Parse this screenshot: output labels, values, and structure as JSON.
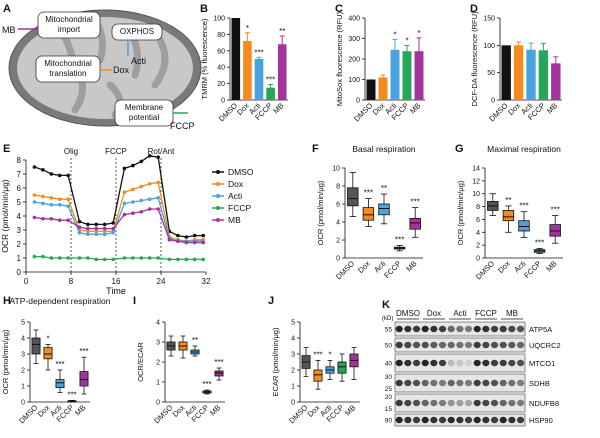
{
  "colors": {
    "dmso": "#111111",
    "dox": "#f58a1f",
    "acti": "#4aa3df",
    "fccp": "#26a65b",
    "mb": "#a3359a",
    "dmso_box": "#555555",
    "mito": "#c8c8c8",
    "mito_inner": "#9e9e9e"
  },
  "panelA": {
    "letter": "A",
    "labels": {
      "mb": "MB",
      "import": "Mitochondrial\nimport",
      "oxphos": "OXPHOS",
      "acti": "Acti",
      "translation": "Mitochondrial\ntranslation",
      "dox": "Dox",
      "membrane": "Membrane\npotential",
      "fccp": "FCCP"
    }
  },
  "panels": [
    {
      "key": "B",
      "letter": "B",
      "ylabel": "TMRM (% fluorescence)",
      "yticks": [
        0,
        20,
        40,
        60,
        80,
        100
      ],
      "ymax": 100,
      "categories": [
        "DMSO",
        "Dox",
        "Acti",
        "FCCP",
        "MB"
      ],
      "values": [
        100,
        72,
        50,
        15,
        68
      ],
      "errors": [
        0,
        10,
        2,
        4,
        10
      ],
      "stars": [
        "",
        "*",
        "***",
        "***",
        "**"
      ]
    },
    {
      "key": "C",
      "letter": "C",
      "ylabel": "MitoSox fluorescence (RFU)",
      "yticks": [
        0,
        100,
        200,
        300,
        400
      ],
      "ymax": 400,
      "categories": [
        "DMSO",
        "Dox",
        "Acti",
        "FCCP",
        "MB"
      ],
      "values": [
        100,
        110,
        245,
        238,
        238
      ],
      "errors": [
        0,
        12,
        50,
        28,
        65
      ],
      "stars": [
        "",
        "",
        "*",
        "*",
        "*"
      ]
    },
    {
      "key": "D",
      "letter": "D",
      "ylabel": "DCF-DA fluorescence (RFU)",
      "yticks": [
        0,
        50,
        100,
        150
      ],
      "ymax": 150,
      "categories": [
        "DMSO",
        "Dox",
        "Acti",
        "FCCP",
        "MB"
      ],
      "values": [
        100,
        100,
        92,
        91,
        67
      ],
      "errors": [
        0,
        6,
        12,
        12,
        12
      ],
      "stars": [
        "",
        "",
        "",
        "",
        ""
      ]
    }
  ],
  "seahorse": {
    "letter": "E",
    "ylabel": "OCR (pmol/min/μg)",
    "xlabel": "Time",
    "xticks": [
      0,
      8,
      16,
      24,
      32
    ],
    "yticks": [
      0,
      1,
      2,
      3,
      4,
      5,
      6,
      7,
      8
    ],
    "xlim": [
      0,
      32
    ],
    "ylim": [
      0,
      8
    ],
    "injections": [
      {
        "t": 8,
        "label": "Olig"
      },
      {
        "t": 16,
        "label": "FCCP"
      },
      {
        "t": 24,
        "label": "Rot/Ant"
      }
    ],
    "x": [
      1.5,
      3,
      4.5,
      6,
      7.5,
      9.5,
      11,
      12.5,
      14,
      15.5,
      17.5,
      19,
      20.5,
      22,
      23.5,
      25.5,
      27,
      28.5,
      30,
      31.5
    ],
    "series": [
      {
        "name": "DMSO",
        "color": "#111111",
        "values": [
          7.5,
          7.3,
          7.0,
          6.9,
          6.9,
          3.6,
          3.4,
          3.4,
          3.4,
          3.5,
          7.4,
          7.6,
          7.9,
          8.3,
          8.2,
          2.9,
          2.6,
          2.5,
          2.6,
          2.6
        ]
      },
      {
        "name": "Dox",
        "color": "#f58a1f",
        "values": [
          5.5,
          5.4,
          5.3,
          5.2,
          5.2,
          3.0,
          2.9,
          2.9,
          2.9,
          2.9,
          5.7,
          5.9,
          6.1,
          6.3,
          6.4,
          2.5,
          2.3,
          2.2,
          2.3,
          2.3
        ]
      },
      {
        "name": "Acti",
        "color": "#4aa3df",
        "values": [
          5.0,
          4.9,
          4.8,
          4.8,
          4.7,
          2.8,
          2.7,
          2.7,
          2.7,
          2.8,
          4.9,
          5.0,
          5.1,
          5.2,
          5.3,
          2.4,
          2.2,
          2.2,
          2.2,
          2.2
        ]
      },
      {
        "name": "FCCP",
        "color": "#26a65b",
        "values": [
          1.1,
          1.1,
          1.0,
          1.0,
          1.0,
          1.0,
          1.0,
          0.9,
          0.9,
          0.9,
          1.0,
          1.0,
          1.0,
          1.0,
          1.0,
          0.9,
          0.9,
          0.9,
          0.9,
          0.9
        ]
      },
      {
        "name": "MB",
        "color": "#a3359a",
        "values": [
          3.9,
          3.8,
          3.8,
          3.7,
          3.7,
          3.2,
          3.1,
          3.1,
          3.1,
          3.1,
          4.1,
          4.2,
          4.3,
          4.5,
          4.5,
          2.3,
          2.2,
          2.1,
          2.1,
          2.1
        ]
      }
    ]
  },
  "boxes": [
    {
      "key": "F",
      "letter": "F",
      "title": "Basal respiration",
      "ylabel": "OCR (pmol/min/μg)",
      "yticks": [
        0,
        2,
        4,
        6,
        8,
        10
      ],
      "ymax": 10,
      "categories": [
        "DMSO",
        "Dox",
        "Acti",
        "FCCP",
        "MB"
      ],
      "boxes": [
        [
          4.6,
          5.8,
          6.6,
          7.8,
          9.5
        ],
        [
          3.5,
          4.2,
          4.8,
          5.6,
          6.6
        ],
        [
          3.8,
          4.8,
          5.5,
          6.0,
          7.1
        ],
        [
          0.8,
          1.0,
          1.1,
          1.2,
          1.4
        ],
        [
          2.3,
          3.2,
          3.9,
          4.4,
          5.6
        ]
      ],
      "stars": [
        "",
        "***",
        "**",
        "***",
        "***"
      ]
    },
    {
      "key": "G",
      "letter": "G",
      "title": "Maximal respiration",
      "ylabel": "OCR (pmol/min/μg)",
      "yticks": [
        0,
        2,
        4,
        6,
        8,
        10,
        12,
        14
      ],
      "ymax": 14,
      "categories": [
        "DMSO",
        "Dox",
        "Acti",
        "FCCP",
        "MB"
      ],
      "boxes": [
        [
          6.6,
          7.4,
          8.1,
          8.8,
          10.0
        ],
        [
          4.0,
          5.8,
          6.4,
          7.4,
          8.1
        ],
        [
          3.2,
          4.2,
          4.9,
          5.8,
          7.2
        ],
        [
          0.7,
          0.9,
          1.1,
          1.3,
          1.5
        ],
        [
          2.3,
          3.4,
          4.2,
          5.2,
          6.6
        ]
      ],
      "stars": [
        "",
        "**",
        "***",
        "***",
        "***"
      ]
    },
    {
      "key": "H",
      "letter": "H",
      "title": "ATP-dependent respiration",
      "ylabel": "OCR (pmol/min/μg)",
      "yticks": [
        0,
        1,
        2,
        3,
        4,
        5
      ],
      "ymax": 5,
      "categories": [
        "DMSO",
        "Dox",
        "Acti",
        "FCCP",
        "MB"
      ],
      "boxes": [
        [
          2.4,
          3.0,
          3.6,
          4.0,
          4.5
        ],
        [
          2.0,
          2.7,
          3.0,
          3.4,
          3.6
        ],
        [
          0.6,
          0.9,
          1.2,
          1.4,
          2.0
        ],
        [
          0.02,
          0.04,
          0.06,
          0.08,
          0.1
        ],
        [
          0.5,
          1.0,
          1.4,
          1.9,
          2.8
        ]
      ],
      "stars": [
        "",
        "*",
        "***",
        "***",
        "***"
      ]
    },
    {
      "key": "I",
      "letter": "I",
      "title": "",
      "ylabel": "OCR/ECAR",
      "yticks": [
        0,
        1,
        2,
        3,
        4
      ],
      "ymax": 4,
      "categories": [
        "DMSO",
        "Dox",
        "Acti",
        "FCCP",
        "MB"
      ],
      "boxes": [
        [
          2.3,
          2.6,
          2.8,
          3.0,
          3.3
        ],
        [
          2.2,
          2.6,
          2.8,
          3.0,
          3.3
        ],
        [
          2.3,
          2.4,
          2.5,
          2.6,
          2.8
        ],
        [
          0.4,
          0.45,
          0.5,
          0.55,
          0.6
        ],
        [
          1.1,
          1.3,
          1.45,
          1.55,
          1.7
        ]
      ],
      "stars": [
        "",
        "",
        "**",
        "***",
        "***"
      ]
    },
    {
      "key": "J",
      "letter": "J",
      "title": "",
      "ylabel": "ECAR (pmol/min/μg)",
      "yticks": [
        0,
        1,
        2,
        3,
        4,
        5
      ],
      "ymax": 5,
      "categories": [
        "DMSO",
        "Dox",
        "Acti",
        "FCCP",
        "MB"
      ],
      "boxes": [
        [
          1.6,
          2.1,
          2.5,
          2.9,
          3.4
        ],
        [
          0.8,
          1.3,
          1.7,
          2.0,
          2.6
        ],
        [
          1.4,
          1.8,
          2.0,
          2.2,
          2.6
        ],
        [
          1.3,
          1.8,
          2.2,
          2.5,
          3.0
        ],
        [
          1.4,
          2.2,
          2.6,
          3.0,
          3.4
        ]
      ],
      "stars": [
        "",
        "***",
        "*",
        "",
        ""
      ]
    }
  ],
  "blot": {
    "letter": "K",
    "unit": "(kD)",
    "groups": [
      "DMSO",
      "Dox",
      "Acti",
      "FCCP",
      "MB"
    ],
    "rows": [
      {
        "marker": "55",
        "label": "ATP5A"
      },
      {
        "marker": "50",
        "label": "UQCRC2"
      },
      {
        "marker": "40",
        "label": "MTCO1"
      },
      {
        "marker": "30",
        "label": "SDHB"
      },
      {
        "marker": "20",
        "label": "NDUFB8"
      },
      {
        "marker": "90",
        "label": "HSP90"
      }
    ],
    "markers_extra": [
      "40",
      "25",
      "15"
    ]
  }
}
